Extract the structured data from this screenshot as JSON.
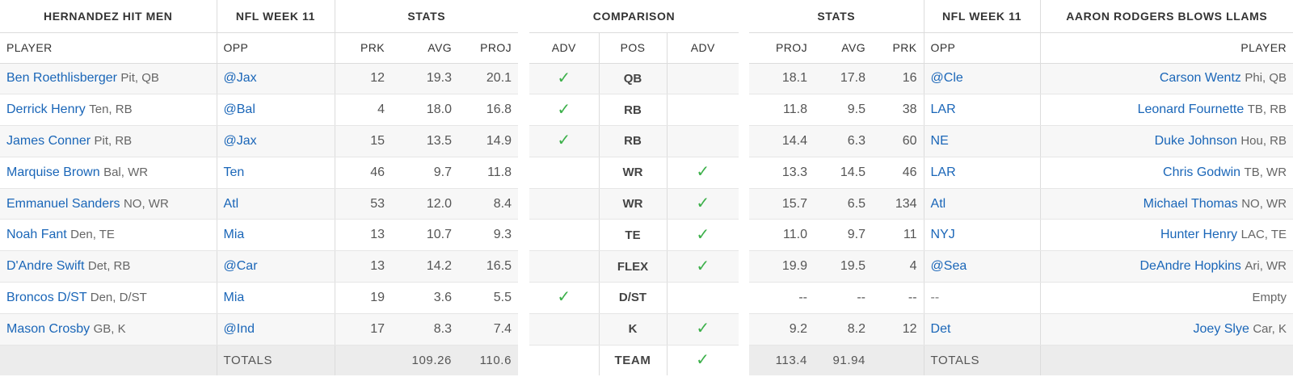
{
  "home": {
    "team_name": "HERNANDEZ HIT MEN",
    "week_label": "NFL WEEK 11",
    "stats_label": "STATS",
    "columns": [
      "PLAYER",
      "OPP",
      "PRK",
      "AVG",
      "PROJ"
    ],
    "rows": [
      {
        "name": "Ben Roethlisberger",
        "meta": "Pit, QB",
        "opp": "@Jax",
        "prk": "12",
        "avg": "19.3",
        "proj": "20.1"
      },
      {
        "name": "Derrick Henry",
        "meta": "Ten, RB",
        "opp": "@Bal",
        "prk": "4",
        "avg": "18.0",
        "proj": "16.8"
      },
      {
        "name": "James Conner",
        "meta": "Pit, RB",
        "opp": "@Jax",
        "prk": "15",
        "avg": "13.5",
        "proj": "14.9"
      },
      {
        "name": "Marquise Brown",
        "meta": "Bal, WR",
        "opp": "Ten",
        "prk": "46",
        "avg": "9.7",
        "proj": "11.8"
      },
      {
        "name": "Emmanuel Sanders",
        "meta": "NO, WR",
        "opp": "Atl",
        "prk": "53",
        "avg": "12.0",
        "proj": "8.4"
      },
      {
        "name": "Noah Fant",
        "meta": "Den, TE",
        "opp": "Mia",
        "prk": "13",
        "avg": "10.7",
        "proj": "9.3"
      },
      {
        "name": "D'Andre Swift",
        "meta": "Det, RB",
        "opp": "@Car",
        "prk": "13",
        "avg": "14.2",
        "proj": "16.5"
      },
      {
        "name": "Broncos D/ST",
        "meta": "Den, D/ST",
        "opp": "Mia",
        "prk": "19",
        "avg": "3.6",
        "proj": "5.5"
      },
      {
        "name": "Mason Crosby",
        "meta": "GB, K",
        "opp": "@Ind",
        "prk": "17",
        "avg": "8.3",
        "proj": "7.4"
      }
    ],
    "totals": {
      "label": "TOTALS",
      "avg": "109.26",
      "proj": "110.6"
    }
  },
  "comparison": {
    "title": "COMPARISON",
    "columns": [
      "ADV",
      "POS",
      "ADV"
    ],
    "rows": [
      {
        "pos": "QB",
        "left_adv": true,
        "right_adv": false
      },
      {
        "pos": "RB",
        "left_adv": true,
        "right_adv": false
      },
      {
        "pos": "RB",
        "left_adv": true,
        "right_adv": false
      },
      {
        "pos": "WR",
        "left_adv": false,
        "right_adv": true
      },
      {
        "pos": "WR",
        "left_adv": false,
        "right_adv": true
      },
      {
        "pos": "TE",
        "left_adv": false,
        "right_adv": true
      },
      {
        "pos": "FLEX",
        "left_adv": false,
        "right_adv": true
      },
      {
        "pos": "D/ST",
        "left_adv": true,
        "right_adv": false
      },
      {
        "pos": "K",
        "left_adv": false,
        "right_adv": true
      }
    ],
    "team_row": {
      "pos": "TEAM",
      "left_adv": false,
      "right_adv": true
    },
    "check_glyph": "✓",
    "check_color": "#3cb04a"
  },
  "away": {
    "team_name": "AARON RODGERS BLOWS LLAMS",
    "week_label": "NFL WEEK 11",
    "stats_label": "STATS",
    "columns": [
      "PROJ",
      "AVG",
      "PRK",
      "OPP",
      "PLAYER"
    ],
    "rows": [
      {
        "name": "Carson Wentz",
        "meta": "Phi, QB",
        "opp": "@Cle",
        "prk": "16",
        "avg": "17.8",
        "proj": "18.1"
      },
      {
        "name": "Leonard Fournette",
        "meta": "TB, RB",
        "opp": "LAR",
        "prk": "38",
        "avg": "9.5",
        "proj": "11.8"
      },
      {
        "name": "Duke Johnson",
        "meta": "Hou, RB",
        "opp": "NE",
        "prk": "60",
        "avg": "6.3",
        "proj": "14.4"
      },
      {
        "name": "Chris Godwin",
        "meta": "TB, WR",
        "opp": "LAR",
        "prk": "46",
        "avg": "14.5",
        "proj": "13.3"
      },
      {
        "name": "Michael Thomas",
        "meta": "NO, WR",
        "opp": "Atl",
        "prk": "134",
        "avg": "6.5",
        "proj": "15.7"
      },
      {
        "name": "Hunter Henry",
        "meta": "LAC, TE",
        "opp": "NYJ",
        "prk": "11",
        "avg": "9.7",
        "proj": "11.0"
      },
      {
        "name": "DeAndre Hopkins",
        "meta": "Ari, WR",
        "opp": "@Sea",
        "prk": "4",
        "avg": "19.5",
        "proj": "19.9"
      },
      {
        "name": "",
        "meta": "Empty",
        "opp": "--",
        "prk": "--",
        "avg": "--",
        "proj": "--",
        "empty": true
      },
      {
        "name": "Joey Slye",
        "meta": "Car, K",
        "opp": "Det",
        "prk": "12",
        "avg": "8.2",
        "proj": "9.2"
      }
    ],
    "totals": {
      "label": "TOTALS",
      "avg": "91.94",
      "proj": "113.4"
    }
  },
  "colors": {
    "link": "#1a66b8",
    "check": "#3cb04a",
    "totals_bg": "#ececec"
  }
}
